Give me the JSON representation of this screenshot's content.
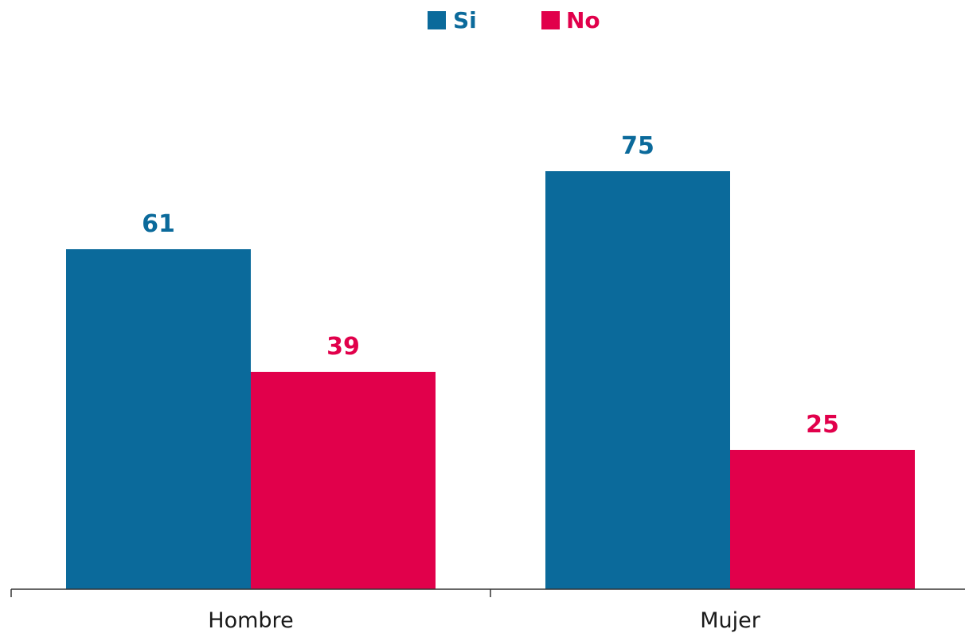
{
  "chart_data": {
    "type": "bar",
    "categories": [
      "Hombre",
      "Mujer"
    ],
    "series": [
      {
        "name": "Si",
        "values": [
          61,
          75
        ],
        "color": "#0b6a9b"
      },
      {
        "name": "No",
        "values": [
          39,
          25
        ],
        "color": "#e1004b"
      }
    ],
    "ylim": [
      0,
      100
    ],
    "grid": false,
    "legend_position": "top-center",
    "axis_color": "#333333"
  }
}
